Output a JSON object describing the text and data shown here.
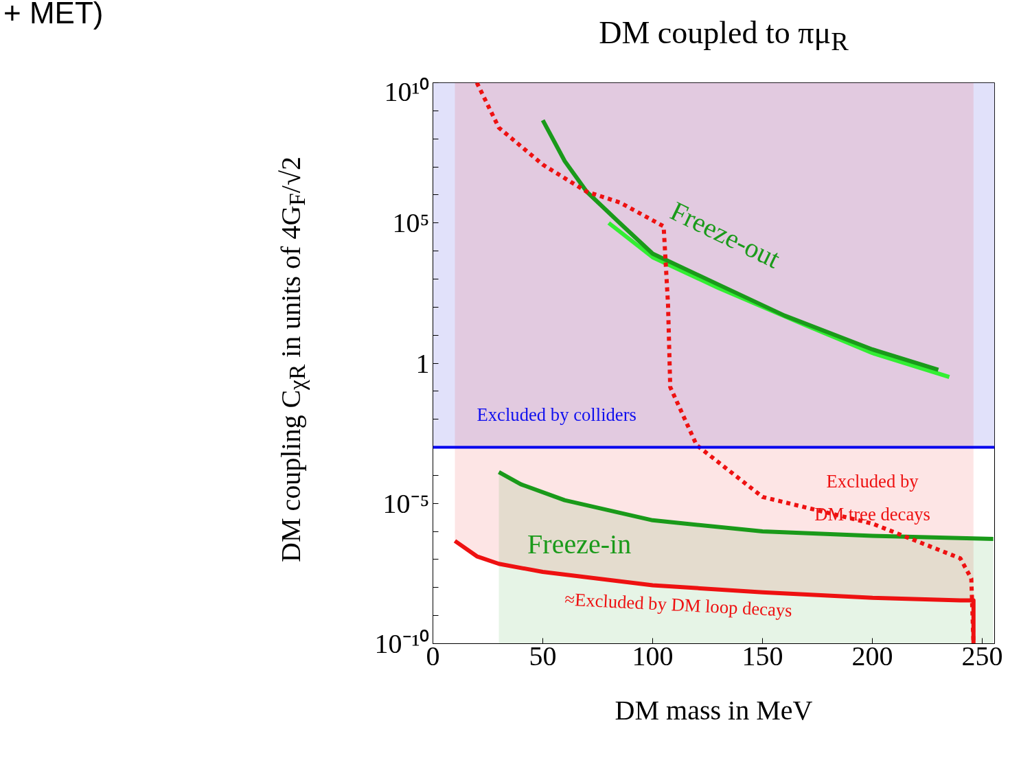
{
  "chart_data": {
    "type": "line",
    "title": "DM coupled to πμ$_{R}$",
    "xlabel": "DM mass in MeV",
    "ylabel": "DM coupling C$_{χR}$ in units of 4G$_{F}$/√2",
    "log": "y",
    "xlim": [
      0,
      255.6
    ],
    "ylim": [
      1e-10,
      10000000000.0
    ],
    "xticks": [
      0,
      50,
      100,
      150,
      200,
      250
    ],
    "yticks": [
      {
        "value": 1e-10,
        "label": "10⁻¹⁰"
      },
      {
        "value": 1e-09,
        "label": null
      },
      {
        "value": 1e-08,
        "label": null
      },
      {
        "value": 1e-07,
        "label": null
      },
      {
        "value": 1e-06,
        "label": null
      },
      {
        "value": 1e-05,
        "label": "10⁻⁵"
      },
      {
        "value": 0.0001,
        "label": null
      },
      {
        "value": 0.001,
        "label": null
      },
      {
        "value": 0.01,
        "label": null
      },
      {
        "value": 0.1,
        "label": null
      },
      {
        "value": 1,
        "label": "1"
      },
      {
        "value": 10,
        "label": null
      },
      {
        "value": 100,
        "label": null
      },
      {
        "value": 1000,
        "label": null
      },
      {
        "value": 10000,
        "label": null
      },
      {
        "value": 100000.0,
        "label": "10⁵"
      },
      {
        "value": 1000000.0,
        "label": null
      },
      {
        "value": 10000000.0,
        "label": null
      },
      {
        "value": 100000000.0,
        "label": null
      },
      {
        "value": 1000000000.0,
        "label": null
      },
      {
        "value": 10000000000.0,
        "label": "10¹⁰"
      }
    ],
    "grid": false,
    "series": [
      {
        "color": "#ee1111",
        "line_style": "solid",
        "x": [
          10,
          20,
          30,
          50,
          100,
          150,
          200,
          240,
          246,
          246
        ],
        "values": [
          4.6e-07,
          1.3e-07,
          7e-08,
          3.6e-08,
          1.2e-08,
          6.8e-09,
          4.3e-09,
          3.5e-09,
          3.5e-09,
          1e-10
        ],
        "lower": [
          4.6e-07,
          1.3e-07,
          7e-08,
          3.6e-08,
          1.2e-08,
          6.8e-09,
          4.3e-09,
          3.5e-09,
          3.5e-09,
          1e-10
        ],
        "upper": [
          10000000000.0,
          10000000000.0,
          10000000000.0,
          10000000000.0,
          10000000000.0,
          10000000000.0,
          10000000000.0,
          10000000000.0,
          10000000000.0,
          10000000000.0
        ]
      },
      {
        "color": "#1a9a1a",
        "line_style": "solid",
        "x": [
          30,
          40,
          60,
          100,
          150,
          200,
          255
        ],
        "values": [
          0.00013,
          4.8e-05,
          1.3e-05,
          2.5e-06,
          1e-06,
          7e-07,
          5.4e-07
        ],
        "lower": [
          1e-10,
          1e-10,
          1e-10,
          1e-10,
          1e-10,
          1e-10,
          1e-10
        ],
        "upper": [
          0.00013,
          4.8e-05,
          1.3e-05,
          2.5e-06,
          1e-06,
          7e-07,
          5.4e-07
        ]
      },
      {
        "color": "#33ee33",
        "line_style": "solid",
        "x": [
          80,
          100,
          130,
          170,
          200,
          235
        ],
        "values": [
          100000.0,
          6000.0,
          480.0,
          22,
          2.3,
          0.32
        ]
      },
      {
        "color": "#1a9a1a",
        "line_style": "solid",
        "x": [
          50,
          60,
          70,
          85,
          100,
          130,
          160,
          200,
          230
        ],
        "values": [
          460000000.0,
          16000000.0,
          1300000.0,
          100000.0,
          8000.0,
          630,
          50,
          3.1,
          0.58
        ]
      },
      {
        "color": "#ee1111",
        "line_style": "dashed",
        "x": [
          20,
          30,
          50,
          70,
          85,
          105,
          107,
          108,
          120,
          150,
          200,
          240,
          245,
          246
        ],
        "values": [
          10000000000.0,
          250000000.0,
          12000000.0,
          1300000.0,
          540000.0,
          76000.0,
          120,
          0.14,
          0.0012,
          1.7e-05,
          1.9e-06,
          1.1e-07,
          2.1e-08,
          1e-10
        ]
      }
    ],
    "bands": [
      {
        "axis": "y",
        "from": 0.001,
        "to": 10000000000.0,
        "color": "#c8c8f5"
      }
    ],
    "ref_lines": [
      {
        "axis": "y",
        "value": 0.001,
        "color": "#0000ee",
        "line_style": "solid"
      }
    ],
    "annotations": [
      "+ MET)",
      "Excluded by colliders",
      "Freeze-out",
      "Excluded by\nDM tree decays",
      "Freeze-in",
      "≈Excluded by DM loop decays"
    ]
  }
}
